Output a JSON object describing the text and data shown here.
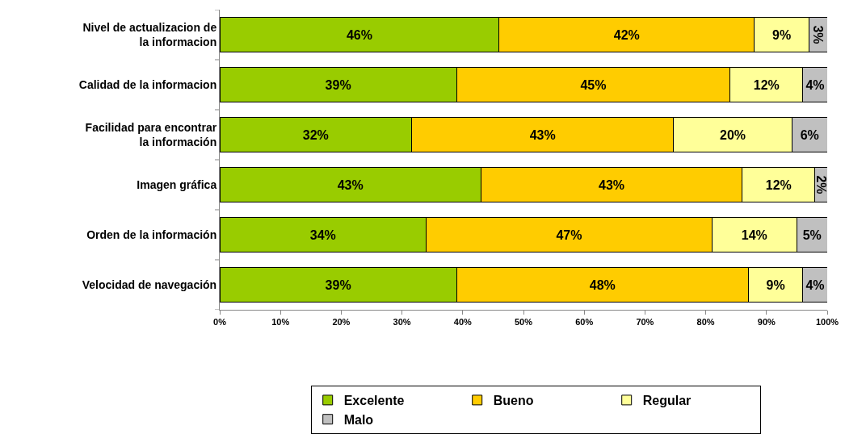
{
  "chart_data": {
    "type": "bar",
    "orientation": "horizontal",
    "stacked": true,
    "categories": [
      "Nivel de actualizacion de la informacion",
      "Calidad de la informacion",
      "Facilidad para encontrar la información",
      "Imagen gráfica",
      "Orden de la información",
      "Velocidad de navegación"
    ],
    "series": [
      {
        "name": "Excelente",
        "color": "#99cc00",
        "values": [
          46,
          39,
          31.6,
          43,
          34,
          39
        ],
        "value_labels": [
          "46%",
          "39%",
          "32%",
          "43%",
          "34%",
          "39%"
        ]
      },
      {
        "name": "Bueno",
        "color": "#ffcc00",
        "values": [
          42,
          45,
          43.1,
          43,
          47,
          48
        ],
        "value_labels": [
          "42%",
          "45%",
          "43%",
          "43%",
          "47%",
          "48%"
        ]
      },
      {
        "name": "Regular",
        "color": "#ffff99",
        "values": [
          9,
          12,
          19.5,
          12,
          14,
          9
        ],
        "value_labels": [
          "9%",
          "12%",
          "20%",
          "12%",
          "14%",
          "9%"
        ]
      },
      {
        "name": "Malo",
        "color": "#c0c0c0",
        "values": [
          3,
          4,
          5.8,
          2,
          5,
          4
        ],
        "value_labels": [
          "3%",
          "4%",
          "6%",
          "2%",
          "5%",
          "4%"
        ]
      }
    ],
    "xlim": [
      0,
      100
    ],
    "xticks": [
      {
        "value": 0,
        "label": "0%"
      },
      {
        "value": 10,
        "label": "10%"
      },
      {
        "value": 20,
        "label": "20%"
      },
      {
        "value": 30,
        "label": "30%"
      },
      {
        "value": 40,
        "label": "40%"
      },
      {
        "value": 50,
        "label": "50%"
      },
      {
        "value": 60,
        "label": "60%"
      },
      {
        "value": 70,
        "label": "70%"
      },
      {
        "value": 80,
        "label": "80%"
      },
      {
        "value": 90,
        "label": "90%"
      },
      {
        "value": 100,
        "label": "100%"
      }
    ],
    "grid": false,
    "legend": "bottom"
  }
}
